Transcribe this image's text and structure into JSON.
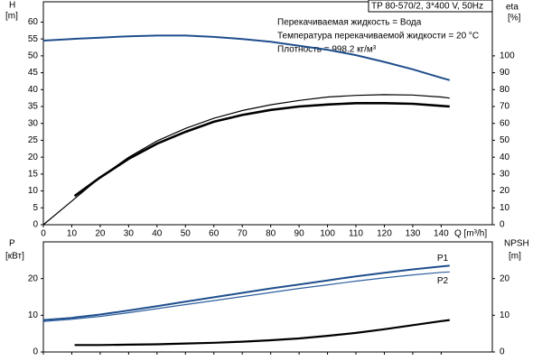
{
  "chart_data": [
    {
      "type": "line",
      "x": [
        0,
        10,
        11,
        20,
        30,
        40,
        50,
        60,
        70,
        80,
        90,
        100,
        110,
        120,
        130,
        140,
        143
      ],
      "xlim": [
        0,
        158
      ],
      "xticks": [
        0,
        10,
        20,
        30,
        40,
        50,
        60,
        70,
        80,
        90,
        100,
        110,
        120,
        130,
        140
      ],
      "xlabel": "Q [m³/h]",
      "ylim": [
        0,
        66
      ],
      "yticks": [
        0,
        5,
        10,
        15,
        20,
        25,
        30,
        35,
        40,
        45,
        50,
        55,
        60
      ],
      "ylabel": "H",
      "ylabel_unit": "[m]",
      "y2lim": [
        0,
        132
      ],
      "y2ticks": [
        0,
        10,
        20,
        30,
        40,
        50,
        60,
        70,
        80,
        90,
        100
      ],
      "y2label": "eta",
      "y2label_unit": "[%]",
      "annotations": [
        "TP 80-570/2, 3*400 V, 50Hz",
        "Перекачиваемая жидкость = Вода",
        "Температура перекачиваемой жидкости = 20 °C",
        "Плотность = 998.2 кг/м³"
      ],
      "series": [
        {
          "color": "#1f4e8c",
          "width": 2,
          "axis": "y2",
          "values": [
            109,
            110,
            110.1,
            110.8,
            111.6,
            112,
            112,
            111.2,
            110,
            108.4,
            106,
            103.6,
            100.4,
            96.4,
            92,
            87,
            85.6
          ]
        },
        {
          "color": "#000000",
          "width": 1.2,
          "values": [
            0,
            7,
            7.7,
            14,
            20,
            24.8,
            28.5,
            31.5,
            33.8,
            35.5,
            36.8,
            37.8,
            38.3,
            38.5,
            38.4,
            37.8,
            37.5
          ]
        },
        {
          "color": "#000000",
          "width": 2.6,
          "values": [
            null,
            null,
            8.5,
            14,
            19.5,
            24,
            27.5,
            30.5,
            32.5,
            34,
            35,
            35.6,
            36,
            36,
            35.8,
            35.2,
            35
          ]
        }
      ]
    },
    {
      "type": "line",
      "x": [
        0,
        10,
        11,
        20,
        30,
        40,
        50,
        60,
        70,
        80,
        90,
        100,
        110,
        120,
        130,
        140,
        143
      ],
      "xlim": [
        0,
        158
      ],
      "xticks": [
        0,
        10,
        20,
        30,
        40,
        50,
        60,
        70,
        80,
        90,
        100,
        110,
        120,
        130,
        140
      ],
      "ylim": [
        0,
        30
      ],
      "yticks": [
        0,
        10,
        20
      ],
      "ylabel": "P",
      "ylabel_unit": "[кВт]",
      "y2lim": [
        0,
        30
      ],
      "y2ticks": [
        0,
        10,
        20
      ],
      "y2label": "NPSH",
      "y2label_unit": "[m]",
      "series": [
        {
          "name": "P1",
          "color": "#1f4e8c",
          "width": 2,
          "values": [
            8.7,
            9.3,
            9.4,
            10.2,
            11.3,
            12.5,
            13.7,
            14.9,
            16.1,
            17.3,
            18.4,
            19.5,
            20.6,
            21.6,
            22.5,
            23.3,
            23.5
          ]
        },
        {
          "name": "P2",
          "color": "#2e5f9e",
          "width": 1.2,
          "values": [
            8.3,
            8.9,
            9,
            9.7,
            10.7,
            11.8,
            12.9,
            14,
            15.1,
            16.2,
            17.3,
            18.3,
            19.3,
            20.2,
            21,
            21.7,
            21.8
          ]
        },
        {
          "color": "#000000",
          "width": 2.2,
          "axis": "y2",
          "values": [
            null,
            null,
            1.9,
            1.9,
            2,
            2.1,
            2.3,
            2.5,
            2.8,
            3.2,
            3.7,
            4.4,
            5.2,
            6.2,
            7.3,
            8.4,
            8.7
          ]
        }
      ]
    }
  ]
}
